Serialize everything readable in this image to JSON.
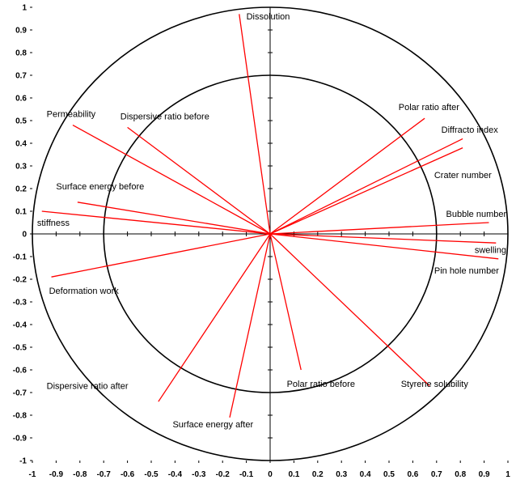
{
  "chart_data": {
    "type": "correlation-circle",
    "title": "",
    "xlabel": "",
    "ylabel": "",
    "xlim": [
      -1,
      1
    ],
    "ylim": [
      -1,
      1
    ],
    "grid": false,
    "circles": [
      1.0,
      0.7
    ],
    "line_color": "#ff0000",
    "x_ticks": [
      "-1",
      "-0.9",
      "-0.8",
      "-0.7",
      "-0.6",
      "-0.5",
      "-0.4",
      "-0.3",
      "-0.2",
      "-0.1",
      "0",
      "0.1",
      "0.2",
      "0.3",
      "0.4",
      "0.5",
      "0.6",
      "0.7",
      "0.8",
      "0.9",
      "1"
    ],
    "y_ticks": [
      "1",
      "0.9",
      "0.8",
      "0.7",
      "0.6",
      "0.5",
      "0.4",
      "0.3",
      "0.2",
      "0.1",
      "0",
      "-0.1",
      "-0.2",
      "-0.3",
      "-0.4",
      "-0.5",
      "-0.6",
      "-0.7",
      "-0.8",
      "-0.9",
      "-1"
    ],
    "variables": [
      {
        "name": "Dissolution",
        "x": -0.13,
        "y": 0.97,
        "lx": -0.1,
        "ly": 0.96
      },
      {
        "name": "Permeability",
        "x": -0.83,
        "y": 0.48,
        "lx": -0.94,
        "ly": 0.53
      },
      {
        "name": "Dispersive ratio before",
        "x": -0.6,
        "y": 0.47,
        "lx": -0.63,
        "ly": 0.52
      },
      {
        "name": "Surface energy before",
        "x": -0.81,
        "y": 0.14,
        "lx": -0.9,
        "ly": 0.21
      },
      {
        "name": "stiffness",
        "x": -0.96,
        "y": 0.1,
        "lx": -0.98,
        "ly": 0.05
      },
      {
        "name": "Deformation work",
        "x": -0.92,
        "y": -0.19,
        "lx": -0.93,
        "ly": -0.25
      },
      {
        "name": "Dispersive ratio after",
        "x": -0.47,
        "y": -0.74,
        "lx": -0.94,
        "ly": -0.67
      },
      {
        "name": "Surface energy after",
        "x": -0.17,
        "y": -0.81,
        "lx": -0.41,
        "ly": -0.84
      },
      {
        "name": "Polar ratio before",
        "x": 0.13,
        "y": -0.6,
        "lx": 0.07,
        "ly": -0.66
      },
      {
        "name": "Styrene solubility",
        "x": 0.67,
        "y": -0.67,
        "lx": 0.55,
        "ly": -0.66
      },
      {
        "name": "Pin hole number",
        "x": 0.96,
        "y": -0.11,
        "lx": 0.69,
        "ly": -0.16
      },
      {
        "name": "swelling",
        "x": 0.95,
        "y": -0.04,
        "lx": 0.86,
        "ly": -0.07
      },
      {
        "name": "Bubble number",
        "x": 0.92,
        "y": 0.05,
        "lx": 0.74,
        "ly": 0.09
      },
      {
        "name": "Crater number",
        "x": 0.81,
        "y": 0.38,
        "lx": 0.69,
        "ly": 0.26
      },
      {
        "name": "Diffracto index",
        "x": 0.81,
        "y": 0.42,
        "lx": 0.72,
        "ly": 0.46
      },
      {
        "name": "Polar ratio after",
        "x": 0.65,
        "y": 0.51,
        "lx": 0.54,
        "ly": 0.56
      }
    ]
  }
}
